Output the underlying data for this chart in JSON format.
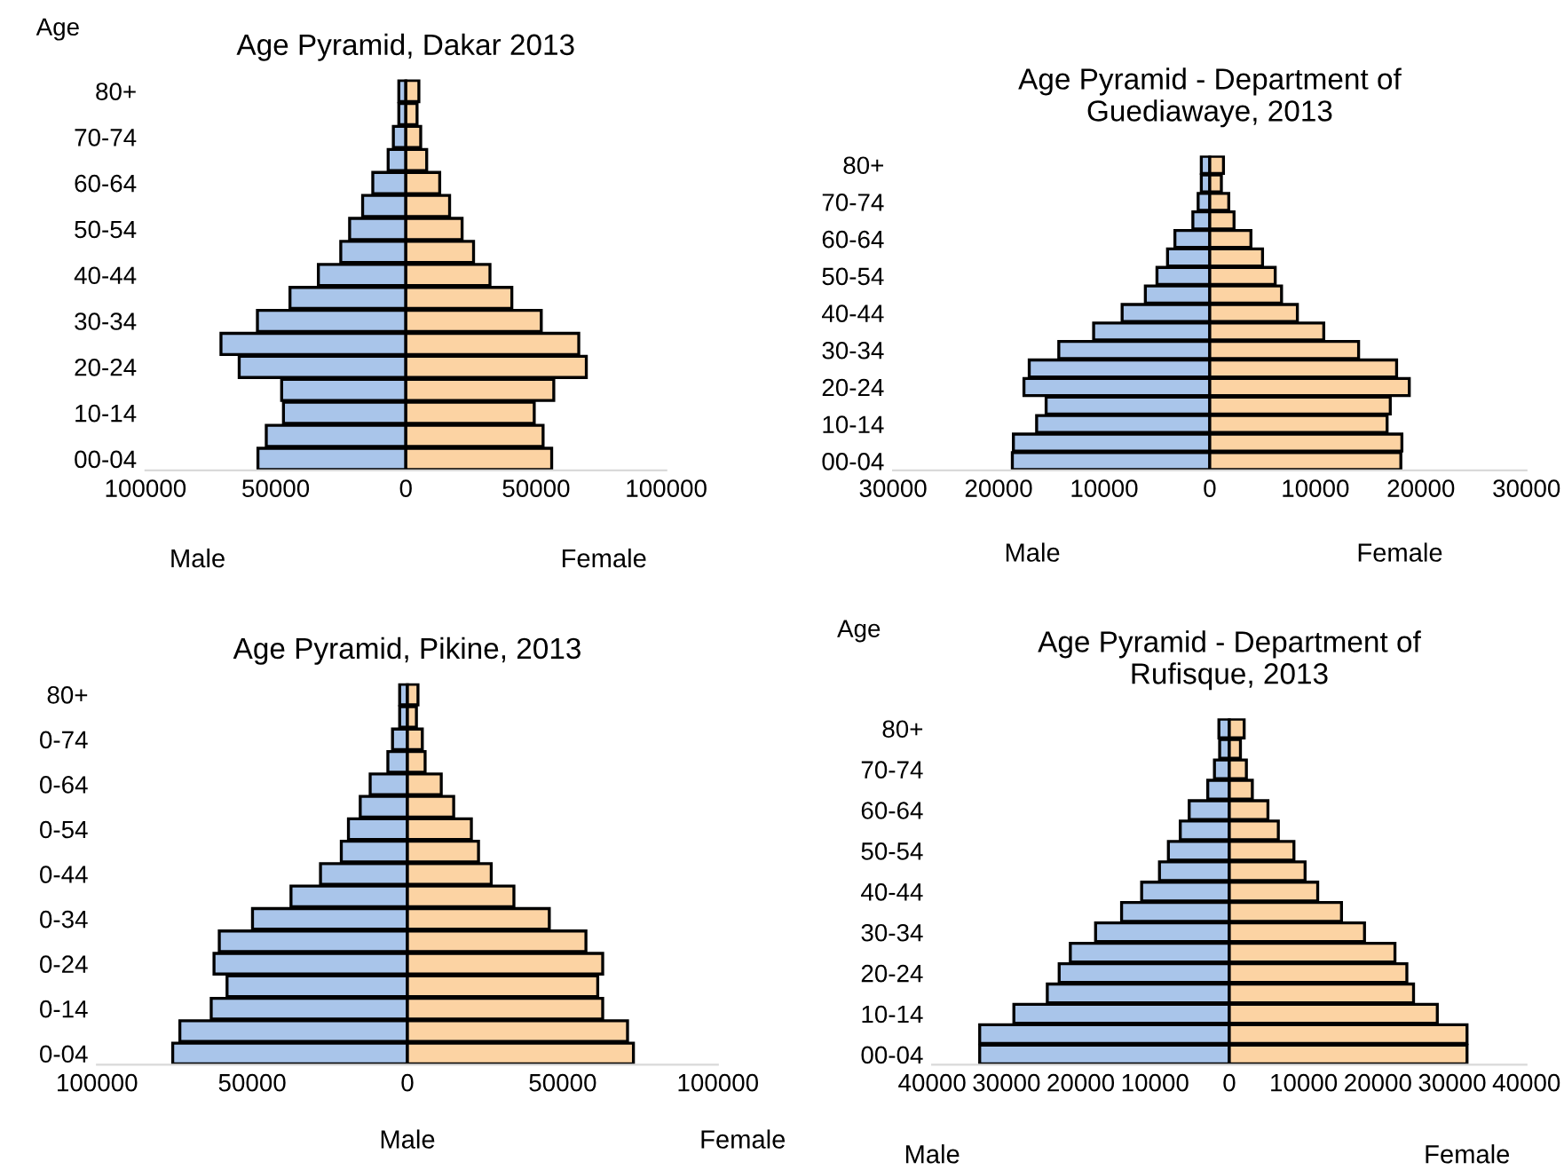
{
  "chart_data": [
    {
      "type": "bar",
      "orientation": "horizontal",
      "stacked": true,
      "title": "Age Pyramid, Dakar 2013",
      "ylabel": "Age",
      "annotations": [
        "Male",
        "Female"
      ],
      "categories": [
        "80+",
        null,
        "70-74",
        null,
        "60-64",
        null,
        "50-54",
        null,
        "40-44",
        null,
        "30-34",
        null,
        "20-24",
        null,
        "10-14",
        null,
        "00-04"
      ],
      "series": [
        {
          "color": "#a9c5ea",
          "values": [
            -2700,
            -2700,
            -4800,
            -6800,
            -12700,
            -16600,
            -21600,
            -25000,
            -33600,
            -44500,
            -57000,
            -71000,
            -64000,
            -47700,
            -47000,
            -53600,
            -56800
          ]
        },
        {
          "color": "#fcd3a3",
          "values": [
            5000,
            4300,
            5700,
            8000,
            13000,
            16800,
            21600,
            26000,
            32300,
            40700,
            52000,
            66400,
            69300,
            56800,
            49300,
            52700,
            56000
          ]
        }
      ],
      "xlim": [
        -100000,
        100000
      ],
      "xticks": [
        {
          "value": -100000,
          "label": "100000"
        },
        {
          "value": -50000,
          "label": "50000"
        },
        0,
        50000,
        100000
      ],
      "legend": false,
      "grid": false
    },
    {
      "type": "bar",
      "orientation": "horizontal",
      "stacked": true,
      "title": "Age Pyramid - Department of\nGuediawaye, 2013",
      "annotations": [
        "Male",
        "Female"
      ],
      "categories": [
        "80+",
        null,
        "70-74",
        null,
        "60-64",
        null,
        "50-54",
        null,
        "40-44",
        null,
        "30-34",
        null,
        "20-24",
        null,
        "10-14",
        null,
        "00-04"
      ],
      "series": [
        {
          "color": "#a9c5ea",
          "values": [
            -800,
            -800,
            -1100,
            -1600,
            -3300,
            -4000,
            -5000,
            -6100,
            -8300,
            -11000,
            -14300,
            -17100,
            -17600,
            -15500,
            -16400,
            -18600,
            -18700
          ]
        },
        {
          "color": "#fcd3a3",
          "values": [
            1300,
            1100,
            1800,
            2300,
            3900,
            5000,
            6200,
            6800,
            8300,
            10800,
            14100,
            17700,
            18900,
            17100,
            16800,
            18200,
            18100
          ]
        }
      ],
      "xlim": [
        -30000,
        30000
      ],
      "xticks": [
        {
          "value": -30000,
          "label": "30000"
        },
        {
          "value": -20000,
          "label": "20000"
        },
        {
          "value": -10000,
          "label": "10000"
        },
        0,
        10000,
        20000,
        30000
      ],
      "legend": false,
      "grid": false
    },
    {
      "type": "bar",
      "orientation": "horizontal",
      "stacked": true,
      "title": "Age Pyramid, Pikine, 2013",
      "annotations": [
        "Male",
        "Female"
      ],
      "categories": [
        "80+",
        null,
        "0-74",
        null,
        "0-64",
        null,
        "0-54",
        null,
        "0-44",
        null,
        "0-34",
        null,
        "0-24",
        null,
        "0-14",
        null,
        "0-04"
      ],
      "series": [
        {
          "color": "#a9c5ea",
          "values": [
            -2500,
            -2500,
            -4800,
            -6300,
            -12000,
            -15200,
            -19000,
            -21300,
            -28000,
            -37500,
            -49900,
            -60600,
            -62300,
            -58100,
            -63200,
            -73300,
            -75600
          ]
        },
        {
          "color": "#fcd3a3",
          "values": [
            3400,
            2900,
            4800,
            5700,
            10900,
            14900,
            20600,
            22900,
            27000,
            34300,
            45700,
            57500,
            62900,
            61300,
            62900,
            70900,
            72800
          ]
        }
      ],
      "xlim": [
        -100000,
        100000
      ],
      "xticks": [
        {
          "value": -100000,
          "label": "100000"
        },
        {
          "value": -50000,
          "label": "50000"
        },
        0,
        50000,
        100000
      ],
      "legend": false,
      "grid": false
    },
    {
      "type": "bar",
      "orientation": "horizontal",
      "stacked": true,
      "title": "Age Pyramid - Department of\nRufisque, 2013",
      "ylabel": "Age",
      "annotations": [
        "Male",
        "Female"
      ],
      "categories": [
        "80+",
        null,
        "70-74",
        null,
        "60-64",
        null,
        "50-54",
        null,
        "40-44",
        null,
        "30-34",
        null,
        "20-24",
        null,
        "10-14",
        null,
        "00-04"
      ],
      "series": [
        {
          "color": "#a9c5ea",
          "values": [
            -1400,
            -1300,
            -2000,
            -2900,
            -5400,
            -6600,
            -8200,
            -9400,
            -11800,
            -14500,
            -18000,
            -21400,
            -22900,
            -24500,
            -29000,
            -33600,
            -33600
          ]
        },
        {
          "color": "#fcd3a3",
          "values": [
            2000,
            1500,
            2300,
            3100,
            5200,
            6600,
            8700,
            10200,
            11900,
            15100,
            18200,
            22300,
            23900,
            24800,
            28000,
            32000,
            32000
          ]
        }
      ],
      "xlim": [
        -40000,
        40000
      ],
      "xticks": [
        {
          "value": -40000,
          "label": "40000"
        },
        {
          "value": -30000,
          "label": "30000"
        },
        {
          "value": -20000,
          "label": "20000"
        },
        {
          "value": -10000,
          "label": "10000"
        },
        0,
        10000,
        20000,
        30000,
        40000
      ],
      "legend": false,
      "grid": false
    }
  ]
}
